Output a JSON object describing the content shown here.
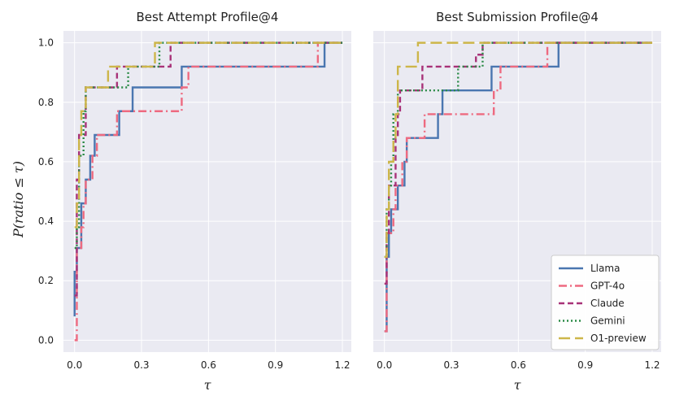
{
  "chart_data": [
    {
      "type": "line",
      "subtype": "step",
      "title": "Best Attempt Profile@4",
      "xlabel": "τ",
      "ylabel": "P(ratio ≤ τ)",
      "xlim": [
        -0.05,
        1.24
      ],
      "ylim": [
        -0.04,
        1.04
      ],
      "xticks": [
        0.0,
        0.3,
        0.6,
        0.9,
        1.2
      ],
      "yticks": [
        0.0,
        0.2,
        0.4,
        0.6,
        0.8,
        1.0
      ],
      "series": [
        {
          "name": "Llama",
          "x": [
            0.0,
            0.0,
            0.01,
            0.03,
            0.05,
            0.07,
            0.09,
            0.2,
            0.26,
            0.48,
            1.12,
            1.2
          ],
          "y": [
            0.08,
            0.23,
            0.31,
            0.46,
            0.54,
            0.62,
            0.69,
            0.77,
            0.85,
            0.92,
            1.0,
            1.0
          ]
        },
        {
          "name": "GPT-4o",
          "x": [
            0.0,
            0.01,
            0.03,
            0.04,
            0.05,
            0.08,
            0.1,
            0.19,
            0.48,
            0.51,
            1.09,
            1.2
          ],
          "y": [
            0.0,
            0.31,
            0.38,
            0.46,
            0.54,
            0.62,
            0.69,
            0.77,
            0.85,
            0.92,
            1.0,
            1.0
          ]
        },
        {
          "name": "Claude",
          "x": [
            0.0,
            0.01,
            0.02,
            0.05,
            0.19,
            0.21,
            0.4,
            0.43,
            1.2
          ],
          "y": [
            0.15,
            0.54,
            0.69,
            0.85,
            0.92,
            0.92,
            0.92,
            1.0,
            1.0
          ]
        },
        {
          "name": "Gemini",
          "x": [
            0.0,
            0.01,
            0.02,
            0.04,
            0.05,
            0.24,
            0.37,
            0.38,
            1.2
          ],
          "y": [
            0.31,
            0.38,
            0.62,
            0.77,
            0.85,
            0.92,
            0.92,
            1.0,
            1.0
          ]
        },
        {
          "name": "O1-preview",
          "x": [
            0.0,
            0.01,
            0.02,
            0.03,
            0.05,
            0.14,
            0.15,
            0.36,
            1.2
          ],
          "y": [
            0.38,
            0.46,
            0.69,
            0.77,
            0.85,
            0.85,
            0.92,
            1.0,
            1.0
          ]
        }
      ]
    },
    {
      "type": "line",
      "subtype": "step",
      "title": "Best Submission Profile@4",
      "xlabel": "τ",
      "ylabel": "",
      "xlim": [
        -0.05,
        1.24
      ],
      "ylim": [
        -0.04,
        1.04
      ],
      "xticks": [
        0.0,
        0.3,
        0.6,
        0.9,
        1.2
      ],
      "yticks": [
        0.0,
        0.2,
        0.4,
        0.6,
        0.8,
        1.0
      ],
      "legend_position": "lower-right",
      "series": [
        {
          "name": "Llama",
          "x": [
            0.0,
            0.01,
            0.02,
            0.03,
            0.06,
            0.09,
            0.1,
            0.24,
            0.26,
            0.48,
            0.78,
            1.2
          ],
          "y": [
            0.03,
            0.28,
            0.36,
            0.44,
            0.52,
            0.6,
            0.68,
            0.76,
            0.84,
            0.92,
            1.0,
            1.0
          ]
        },
        {
          "name": "GPT-4o",
          "x": [
            0.0,
            0.01,
            0.04,
            0.05,
            0.08,
            0.1,
            0.13,
            0.18,
            0.26,
            0.49,
            0.52,
            0.73,
            1.2
          ],
          "y": [
            0.03,
            0.36,
            0.44,
            0.52,
            0.6,
            0.68,
            0.68,
            0.76,
            0.76,
            0.84,
            0.92,
            1.0,
            1.0
          ]
        },
        {
          "name": "Claude",
          "x": [
            0.0,
            0.01,
            0.02,
            0.05,
            0.06,
            0.07,
            0.17,
            0.41,
            0.44,
            1.2
          ],
          "y": [
            0.19,
            0.36,
            0.52,
            0.68,
            0.76,
            0.84,
            0.92,
            0.96,
            1.0,
            1.0
          ]
        },
        {
          "name": "Gemini",
          "x": [
            0.0,
            0.01,
            0.02,
            0.03,
            0.04,
            0.06,
            0.33,
            0.44,
            1.2
          ],
          "y": [
            0.28,
            0.44,
            0.52,
            0.6,
            0.76,
            0.84,
            0.92,
            1.0,
            1.0
          ]
        },
        {
          "name": "O1-preview",
          "x": [
            0.0,
            0.01,
            0.02,
            0.04,
            0.05,
            0.06,
            0.15,
            1.2
          ],
          "y": [
            0.28,
            0.44,
            0.6,
            0.68,
            0.76,
            0.92,
            1.0,
            1.0
          ]
        }
      ]
    }
  ],
  "legend": [
    {
      "name": "Llama",
      "color": "#4a76b0",
      "dash": "solid"
    },
    {
      "name": "GPT-4o",
      "color": "#ee6a80",
      "dash": "dashdot"
    },
    {
      "name": "Claude",
      "color": "#a83278",
      "dash": "dashed"
    },
    {
      "name": "Gemini",
      "color": "#2a8a46",
      "dash": "dotted"
    },
    {
      "name": "O1-preview",
      "color": "#cdb64a",
      "dash": "longdash"
    }
  ]
}
